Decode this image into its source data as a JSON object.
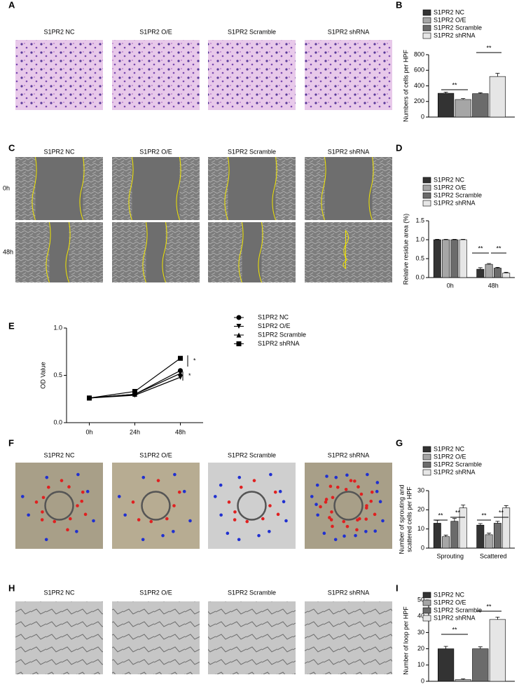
{
  "figure": {
    "letters": [
      "A",
      "B",
      "C",
      "D",
      "E",
      "F",
      "G",
      "H",
      "I"
    ],
    "image_panels": [
      {
        "labels": [
          "S1PR2 NC",
          "S1PR2 O/E",
          "S1PR2 Scramble",
          "S1PR2 shRNA"
        ]
      },
      {
        "labels": [
          "S1PR2 NC",
          "S1PR2 O/E",
          "S1PR2 Scramble",
          "S1PR2 shRNA"
        ],
        "rows": [
          "0h",
          "48h"
        ]
      },
      {
        "labels": [
          "S1PR2 NC",
          "S1PR2 O/E",
          "S1PR2 Scramble",
          "S1PR2 shRNA"
        ]
      },
      {
        "labels": [
          "S1PR2 NC",
          "S1PR2 O/E",
          "S1PR2 Scramble",
          "S1PR2 shRNA"
        ]
      }
    ]
  },
  "chart_data": [
    {
      "type": "bar",
      "ylabel": [
        "Numbers of cells per HPF"
      ],
      "categories": [
        null
      ],
      "series": [
        {
          "name": "S1PR2 NC",
          "color": "#333333",
          "values": [
            305
          ],
          "errors": [
            15
          ]
        },
        {
          "name": "S1PR2 O/E",
          "color": "#a6a6a6",
          "values": [
            225
          ],
          "errors": [
            12
          ]
        },
        {
          "name": "S1PR2 Scramble",
          "color": "#6b6b6b",
          "values": [
            300
          ],
          "errors": [
            12
          ]
        },
        {
          "name": "S1PR2 shRNA",
          "color": "#e6e6e6",
          "values": [
            520
          ],
          "errors": [
            40
          ]
        }
      ],
      "ylim": [
        0,
        800
      ],
      "yticks": [
        0,
        200,
        400,
        600,
        800
      ],
      "annotations": [
        "**",
        "**"
      ]
    },
    {
      "type": "bar",
      "ylabel": [
        "Relative residue area (%)"
      ],
      "categories": [
        "0h",
        "48h"
      ],
      "series": [
        {
          "name": "S1PR2 NC",
          "color": "#333333",
          "values": [
            1.0,
            0.22
          ],
          "errors": [
            0.01,
            0.04
          ]
        },
        {
          "name": "S1PR2 O/E",
          "color": "#a6a6a6",
          "values": [
            1.0,
            0.35
          ],
          "errors": [
            0.01,
            0.02
          ]
        },
        {
          "name": "S1PR2 Scramble",
          "color": "#6b6b6b",
          "values": [
            1.0,
            0.25
          ],
          "errors": [
            0.01,
            0.02
          ]
        },
        {
          "name": "S1PR2 shRNA",
          "color": "#e6e6e6",
          "values": [
            1.0,
            0.12
          ],
          "errors": [
            0.01,
            0.02
          ]
        }
      ],
      "ylim": [
        0,
        1.5
      ],
      "yticks": [
        {
          "value": 0,
          "label": "0.0"
        },
        0.5,
        {
          "value": 1,
          "label": "1.0"
        },
        1.5
      ],
      "annotations": [
        "**",
        "**"
      ]
    },
    {
      "type": "line",
      "ylabel": [
        "OD Value"
      ],
      "categories": [
        "0h",
        "24h",
        "48h"
      ],
      "series": [
        {
          "name": "S1PR2 NC",
          "color": "#000000",
          "marker": "circle",
          "values": [
            0.26,
            0.3,
            0.55
          ]
        },
        {
          "name": "S1PR2 O/E",
          "color": "#000000",
          "marker": "triangle-down",
          "values": [
            0.26,
            0.29,
            0.48
          ]
        },
        {
          "name": "S1PR2 Scramble",
          "color": "#000000",
          "marker": "triangle-up",
          "values": [
            0.26,
            0.3,
            0.52
          ]
        },
        {
          "name": "S1PR2 shRNA",
          "color": "#000000",
          "marker": "square",
          "values": [
            0.26,
            0.33,
            0.68
          ]
        }
      ],
      "ylim": [
        0,
        1
      ],
      "yticks": [
        {
          "value": 0,
          "label": "0.0"
        },
        0.5,
        {
          "value": 1,
          "label": "1.0"
        }
      ],
      "annotations": [
        "*",
        "*"
      ]
    },
    {
      "type": "bar",
      "ylabel": [
        "Number of sprouting and",
        "scattered cells per HPF"
      ],
      "categories": [
        "Sprouting",
        "Scattered"
      ],
      "series": [
        {
          "name": "S1PR2 NC",
          "color": "#333333",
          "values": [
            13,
            12
          ],
          "errors": [
            1.5,
            0.8
          ]
        },
        {
          "name": "S1PR2 O/E",
          "color": "#a6a6a6",
          "values": [
            6,
            7
          ],
          "errors": [
            0.8,
            0.8
          ]
        },
        {
          "name": "S1PR2 Scramble",
          "color": "#6b6b6b",
          "values": [
            14,
            13
          ],
          "errors": [
            1.5,
            1
          ]
        },
        {
          "name": "S1PR2 shRNA",
          "color": "#e6e6e6",
          "values": [
            21,
            21
          ],
          "errors": [
            1.5,
            1.2
          ]
        }
      ],
      "ylim": [
        0,
        30
      ],
      "yticks": [
        0,
        10,
        20,
        30
      ],
      "annotations": [
        "**",
        "**",
        "**",
        "**"
      ]
    },
    {
      "type": "bar",
      "ylabel": [
        "Number of loop per HPF"
      ],
      "categories": [
        null
      ],
      "series": [
        {
          "name": "S1PR2 NC",
          "color": "#333333",
          "values": [
            20
          ],
          "errors": [
            1.5
          ]
        },
        {
          "name": "S1PR2 O/E",
          "color": "#a6a6a6",
          "values": [
            1
          ],
          "errors": [
            0.5
          ]
        },
        {
          "name": "S1PR2 Scramble",
          "color": "#6b6b6b",
          "values": [
            20
          ],
          "errors": [
            1.2
          ]
        },
        {
          "name": "S1PR2 shRNA",
          "color": "#e6e6e6",
          "values": [
            38
          ],
          "errors": [
            1.5
          ]
        }
      ],
      "ylim": [
        0,
        50
      ],
      "yticks": [
        0,
        10,
        20,
        30,
        40,
        50
      ],
      "annotations": [
        "**",
        "**"
      ]
    }
  ]
}
